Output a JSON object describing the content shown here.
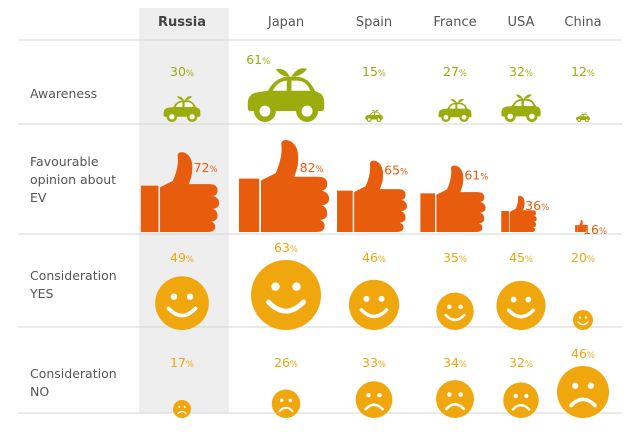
{
  "chart_data": {
    "type": "table",
    "categories": [
      "Russia",
      "Japan",
      "Spain",
      "France",
      "USA",
      "China"
    ],
    "highlighted_category": "Russia",
    "rows": [
      {
        "key": "awareness",
        "label": [
          "Awareness"
        ],
        "icon": "car-icon",
        "color": "#9aad0c",
        "values": [
          30,
          61,
          15,
          27,
          32,
          12
        ]
      },
      {
        "key": "favourable",
        "label": [
          "Favourable",
          "opinion about",
          "EV"
        ],
        "icon": "thumbs-up-icon",
        "color": "#e85c0d",
        "values": [
          72,
          82,
          65,
          61,
          36,
          16
        ]
      },
      {
        "key": "consideration_yes",
        "label": [
          "Consideration",
          "YES"
        ],
        "icon": "smiley-face-icon",
        "color": "#f0a70e",
        "values": [
          49,
          63,
          46,
          35,
          45,
          20
        ]
      },
      {
        "key": "consideration_no",
        "label": [
          "Consideration",
          "NO"
        ],
        "icon": "sad-face-icon",
        "color": "#f0a70e",
        "values": [
          17,
          26,
          33,
          34,
          32,
          46
        ]
      }
    ],
    "unit": "%",
    "colors": {
      "highlight_column": "#eeeeee",
      "divider": "#d4d4d4",
      "text": "#555555"
    }
  }
}
